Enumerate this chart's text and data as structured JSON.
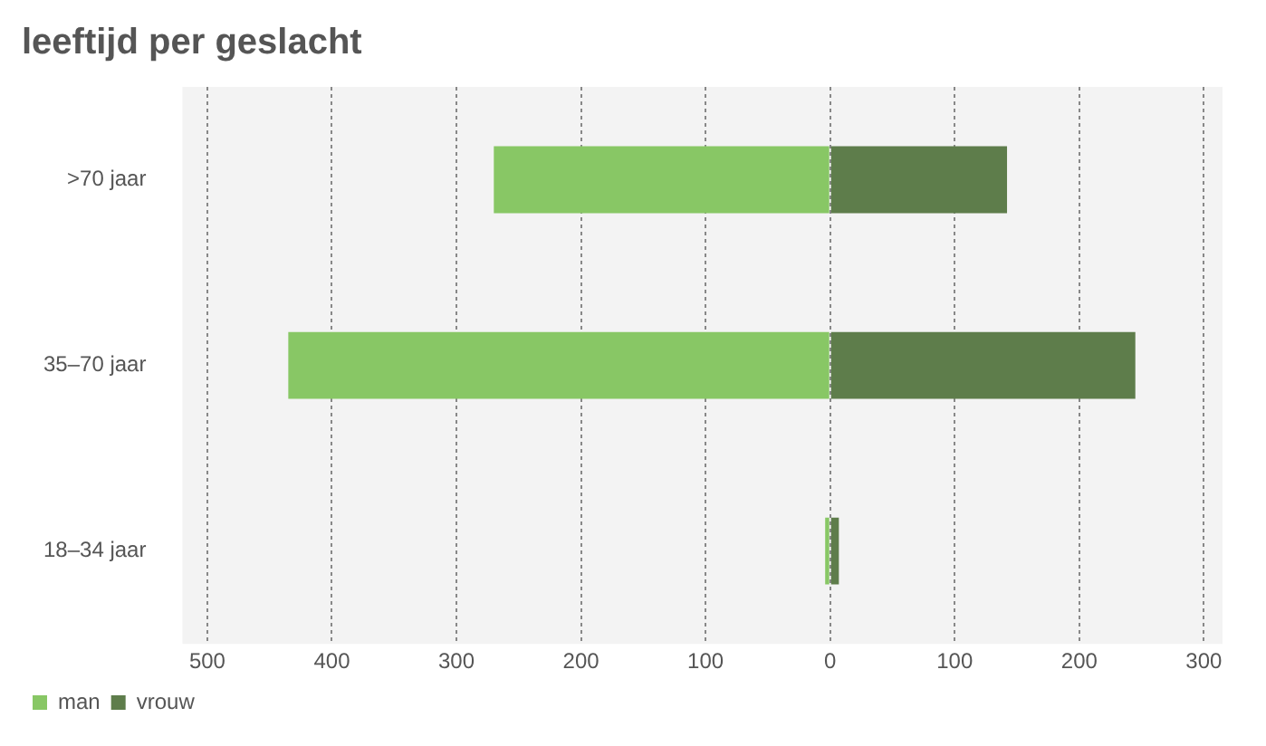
{
  "chart_data": {
    "type": "bar",
    "title": "leeftijd per geslacht",
    "orientation": "horizontal",
    "stacked": true,
    "categories": [
      ">70 jaar",
      "35–70 jaar",
      "18–34 jaar"
    ],
    "series": [
      {
        "name": "man",
        "color": "#88c765",
        "values": [
          -270,
          -435,
          -4
        ]
      },
      {
        "name": "vrouw",
        "color": "#5e7d4b",
        "values": [
          142,
          245,
          7
        ]
      }
    ],
    "xlim": [
      -520,
      315
    ],
    "xticks": [
      {
        "value": -500,
        "label": "500"
      },
      {
        "value": -400,
        "label": "400"
      },
      {
        "value": -300,
        "label": "300"
      },
      {
        "value": -200,
        "label": "200"
      },
      {
        "value": -100,
        "label": "100"
      },
      0,
      100,
      200,
      300
    ],
    "grid": "x",
    "legend": "bottom left"
  }
}
